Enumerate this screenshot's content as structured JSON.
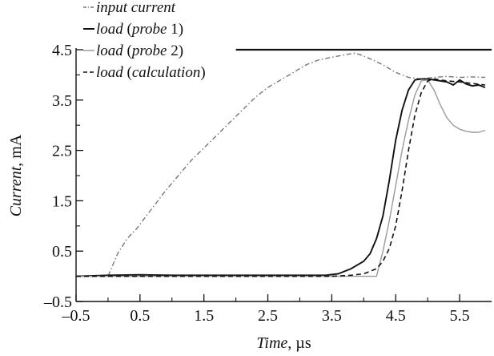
{
  "chart_data": {
    "type": "line",
    "title": "",
    "xlabel_italic": "Time",
    "xlabel_unit": ", µs",
    "ylabel_italic": "Current",
    "ylabel_unit": ", mA",
    "xlim": [
      -0.5,
      6.0
    ],
    "ylim": [
      -0.5,
      4.5
    ],
    "x_ticks": [
      -0.5,
      0.5,
      1.5,
      2.5,
      3.5,
      4.5,
      5.5
    ],
    "x_tick_labels": [
      "–0.5",
      "0.5",
      "1.5",
      "2.5",
      "3.5",
      "4.5",
      "5.5"
    ],
    "y_ticks": [
      -0.5,
      0.5,
      1.5,
      2.5,
      3.5,
      4.5
    ],
    "y_tick_labels": [
      "–0.5",
      "0.5",
      "1.5",
      "2.5",
      "3.5",
      "4.5"
    ],
    "grid": false,
    "legend_position": "top-left",
    "series": [
      {
        "name": "input current",
        "legend_italic": "input current",
        "legend_plain": "",
        "legend_suffix": "",
        "color": "#777777",
        "dash": "dashdot",
        "x": [
          -0.5,
          0.0,
          0.05,
          0.15,
          0.3,
          0.45,
          0.6,
          0.75,
          0.9,
          1.1,
          1.3,
          1.5,
          1.7,
          1.9,
          2.1,
          2.3,
          2.5,
          2.7,
          2.9,
          3.1,
          3.3,
          3.5,
          3.7,
          3.85,
          3.95,
          4.1,
          4.3,
          4.5,
          4.7,
          4.9,
          5.1,
          5.3,
          5.5,
          5.7,
          5.9
        ],
        "y": [
          0.0,
          0.0,
          0.15,
          0.45,
          0.75,
          0.95,
          1.2,
          1.45,
          1.7,
          2.0,
          2.3,
          2.55,
          2.8,
          3.05,
          3.3,
          3.55,
          3.75,
          3.9,
          4.05,
          4.2,
          4.3,
          4.35,
          4.4,
          4.43,
          4.4,
          4.32,
          4.2,
          4.05,
          3.95,
          3.92,
          3.95,
          3.97,
          3.95,
          3.96,
          3.95
        ]
      },
      {
        "name": "load (probe 1)",
        "legend_italic": "load",
        "legend_plain": " (",
        "legend_italic2": "probe",
        "legend_suffix": " 1)",
        "color": "#111111",
        "dash": "solid",
        "x": [
          -0.5,
          0.0,
          0.5,
          1.0,
          1.5,
          2.0,
          2.5,
          3.0,
          3.4,
          3.6,
          3.8,
          4.0,
          4.1,
          4.2,
          4.3,
          4.4,
          4.5,
          4.6,
          4.7,
          4.8,
          4.9,
          5.0,
          5.1,
          5.2,
          5.3,
          5.4,
          5.5,
          5.6,
          5.7,
          5.8,
          5.9
        ],
        "y": [
          0.0,
          0.02,
          0.03,
          0.02,
          0.02,
          0.02,
          0.02,
          0.02,
          0.02,
          0.05,
          0.15,
          0.3,
          0.45,
          0.75,
          1.2,
          1.9,
          2.7,
          3.3,
          3.7,
          3.9,
          3.92,
          3.92,
          3.9,
          3.88,
          3.86,
          3.8,
          3.9,
          3.82,
          3.78,
          3.8,
          3.75
        ]
      },
      {
        "name": "load (probe 2)",
        "legend_italic": "load",
        "legend_plain": " (",
        "legend_italic2": "probe",
        "legend_suffix": " 2)",
        "color": "#9a9a9a",
        "dash": "solid",
        "x": [
          -0.5,
          0.0,
          0.5,
          1.0,
          1.5,
          2.0,
          2.5,
          3.0,
          3.5,
          4.0,
          4.2,
          4.3,
          4.4,
          4.5,
          4.6,
          4.7,
          4.8,
          4.9,
          5.0,
          5.1,
          5.2,
          5.3,
          5.4,
          5.5,
          5.6,
          5.7,
          5.8,
          5.9
        ],
        "y": [
          0.0,
          0.0,
          0.0,
          0.0,
          0.0,
          0.0,
          0.0,
          0.0,
          0.0,
          0.0,
          0.0,
          0.5,
          1.1,
          1.8,
          2.5,
          3.1,
          3.6,
          3.88,
          3.9,
          3.7,
          3.4,
          3.15,
          3.0,
          2.92,
          2.88,
          2.86,
          2.86,
          2.9
        ]
      },
      {
        "name": "load (calculation)",
        "legend_italic": "load",
        "legend_plain": " (",
        "legend_italic2": "calculation",
        "legend_suffix": ")",
        "color": "#111111",
        "dash": "dashed",
        "x": [
          -0.5,
          0.0,
          0.5,
          1.0,
          1.5,
          2.0,
          2.5,
          3.0,
          3.5,
          3.8,
          4.0,
          4.2,
          4.3,
          4.4,
          4.5,
          4.6,
          4.7,
          4.8,
          4.9,
          5.0,
          5.1,
          5.2,
          5.3,
          5.5,
          5.7,
          5.9
        ],
        "y": [
          0.0,
          0.0,
          0.0,
          0.0,
          0.0,
          0.0,
          0.0,
          0.0,
          0.0,
          0.02,
          0.05,
          0.15,
          0.3,
          0.55,
          1.0,
          1.7,
          2.5,
          3.2,
          3.65,
          3.88,
          3.92,
          3.9,
          3.88,
          3.86,
          3.83,
          3.8
        ]
      }
    ],
    "annotations": [
      {
        "type": "hline",
        "y": 4.5,
        "x_from": 2.0,
        "x_to": 6.0,
        "color": "#111111"
      }
    ]
  }
}
